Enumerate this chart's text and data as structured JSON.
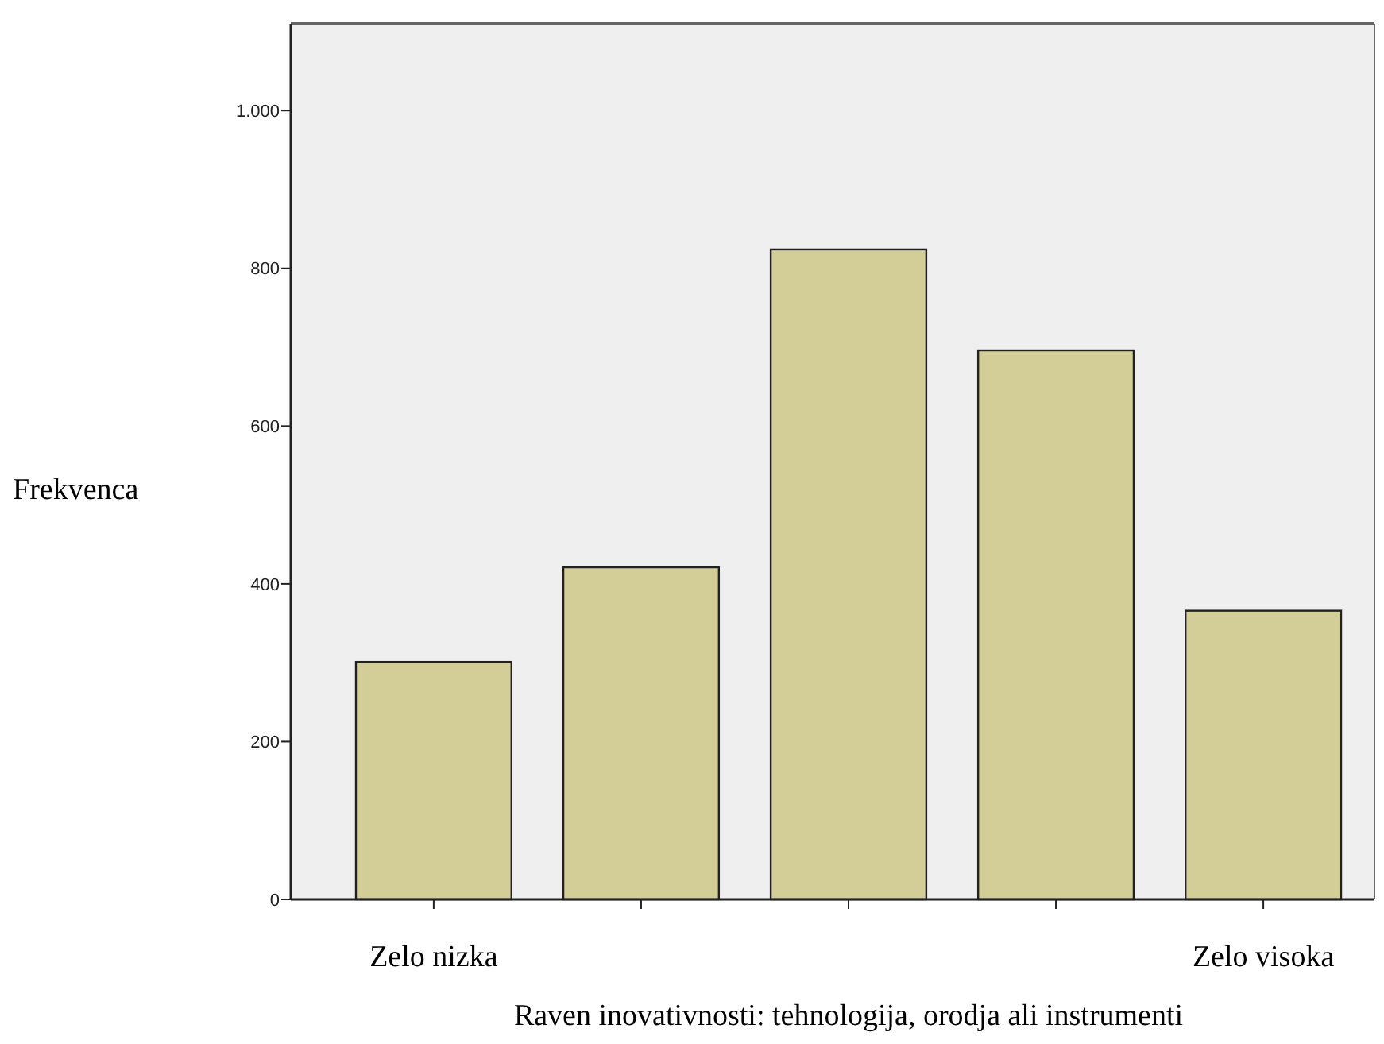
{
  "chart_data": {
    "type": "bar",
    "xlabel": "Raven inovativnosti: tehnologija, orodja ali instrumenti",
    "ylabel": "Frekvenca",
    "categories": [
      "Zelo nizka",
      null,
      null,
      null,
      "Zelo visoka"
    ],
    "values": [
      301,
      421,
      824,
      696,
      366
    ],
    "color": "#d3cd98",
    "ylim": [
      0,
      1110
    ],
    "yticks": [
      0,
      200,
      400,
      600,
      800,
      {
        "value": 1000,
        "label": "1.000"
      }
    ]
  }
}
